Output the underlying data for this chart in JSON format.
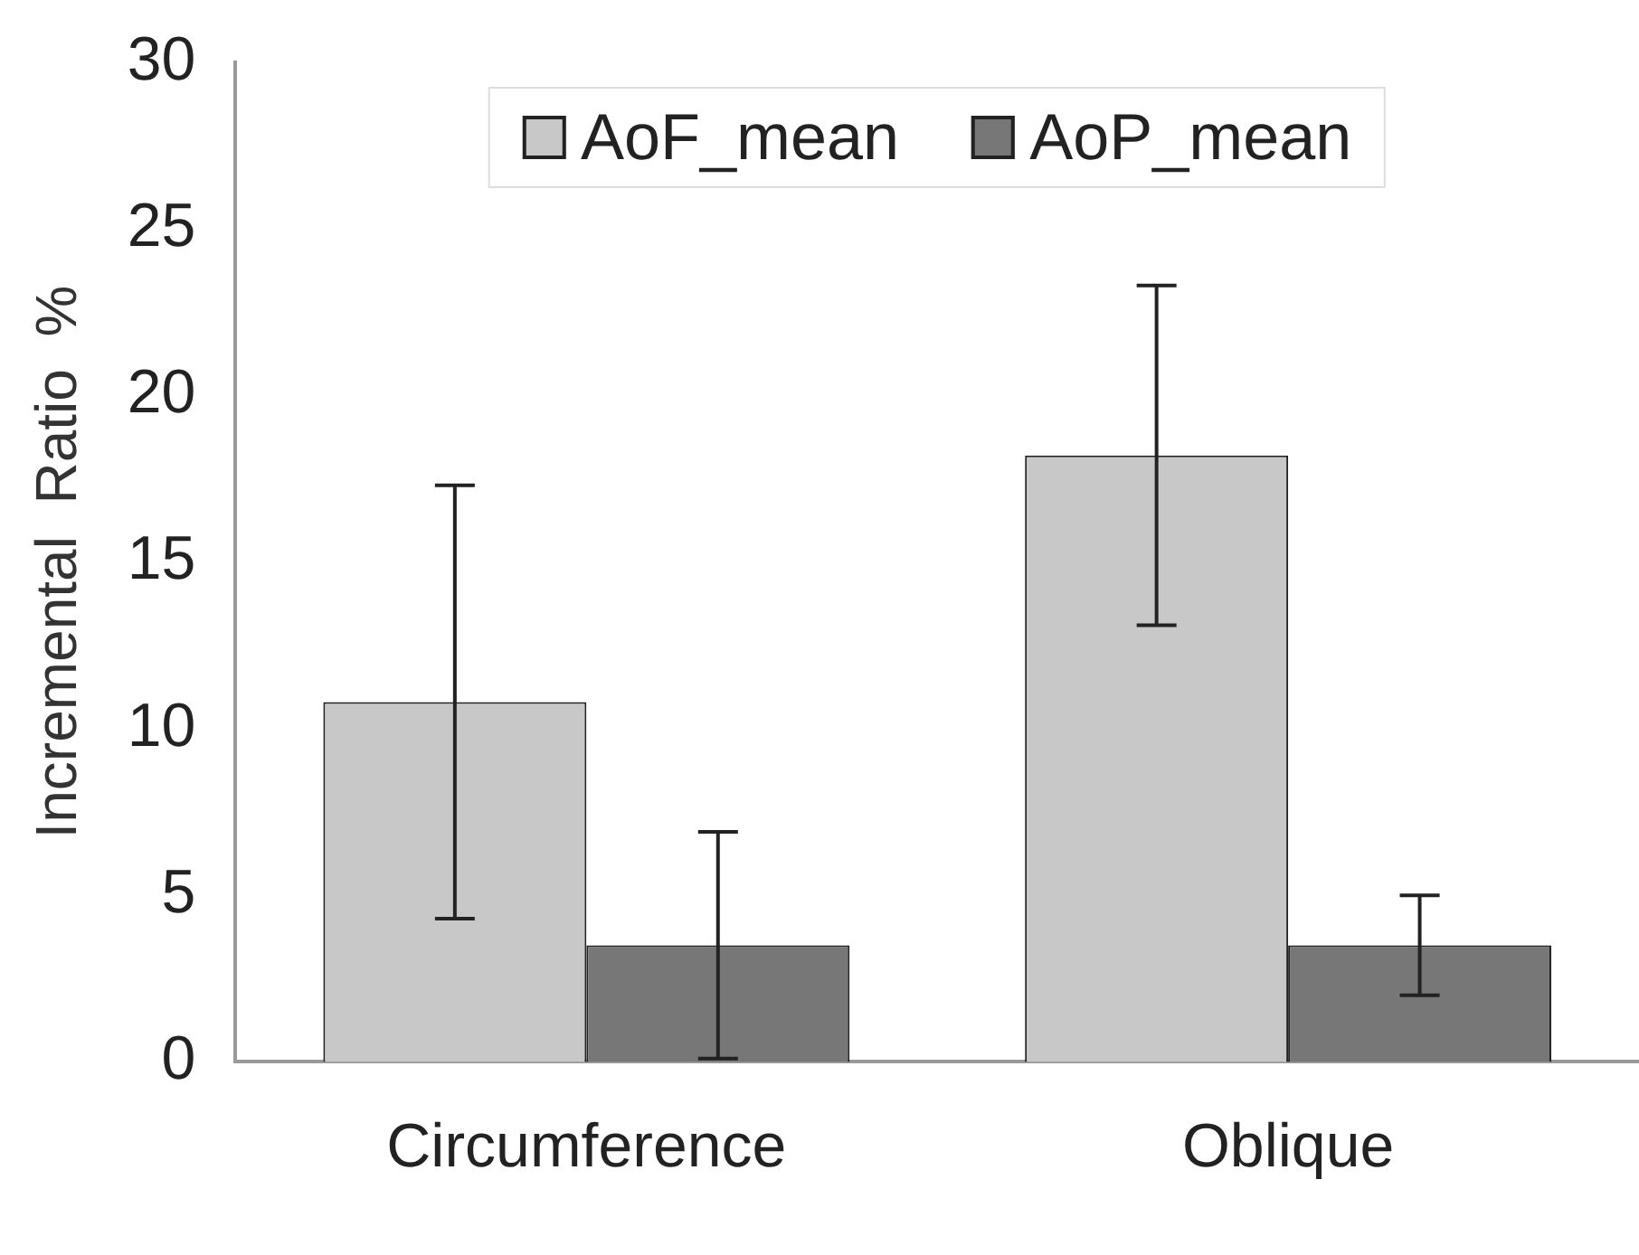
{
  "chart_data": {
    "type": "bar",
    "ylabel": "Incremental  Ratio  %",
    "categories": [
      "Circumference",
      "Oblique"
    ],
    "series": [
      {
        "name": "AoF_mean",
        "color": "#c8c8c8",
        "values": [
          10.8,
          18.2
        ],
        "errors": [
          6.5,
          5.1
        ]
      },
      {
        "name": "AoP_mean",
        "color": "#777777",
        "values": [
          3.5,
          3.5
        ],
        "errors": [
          3.4,
          1.5
        ]
      }
    ],
    "ylim": [
      0,
      30
    ],
    "yticks": [
      0,
      5,
      10,
      15,
      20,
      25,
      30
    ],
    "grid": false,
    "legend": "top"
  }
}
